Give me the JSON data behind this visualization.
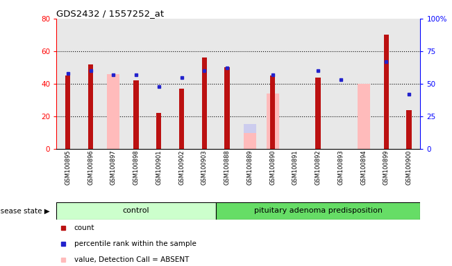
{
  "title": "GDS2432 / 1557252_at",
  "samples": [
    "GSM100895",
    "GSM100896",
    "GSM100897",
    "GSM100898",
    "GSM100901",
    "GSM100902",
    "GSM100903",
    "GSM100888",
    "GSM100889",
    "GSM100890",
    "GSM100891",
    "GSM100892",
    "GSM100893",
    "GSM100894",
    "GSM100899",
    "GSM100900"
  ],
  "count_values": [
    45,
    52,
    null,
    42,
    22,
    37,
    56,
    50,
    null,
    45,
    null,
    44,
    null,
    null,
    70,
    24
  ],
  "percentile_values": [
    58,
    60,
    57,
    57,
    48,
    55,
    60,
    62,
    null,
    57,
    null,
    60,
    53,
    null,
    67,
    42
  ],
  "absent_value_values": [
    null,
    null,
    46,
    null,
    null,
    null,
    null,
    null,
    10,
    34,
    null,
    null,
    null,
    40,
    null,
    null
  ],
  "absent_rank_values": [
    null,
    null,
    null,
    null,
    null,
    null,
    null,
    null,
    19,
    37,
    null,
    null,
    null,
    null,
    null,
    null
  ],
  "left_ylim": [
    0,
    80
  ],
  "right_ylim": [
    0,
    100
  ],
  "left_yticks": [
    0,
    20,
    40,
    60,
    80
  ],
  "right_yticks": [
    0,
    25,
    50,
    75,
    100
  ],
  "right_yticklabels": [
    "0",
    "25",
    "50",
    "75",
    "100%"
  ],
  "bar_color_count": "#bb1111",
  "bar_color_absent_value": "#ffbbbb",
  "bar_color_absent_rank": "#ccccee",
  "dot_color_percentile": "#2222cc",
  "control_count": 7,
  "disease_state_label": "disease state",
  "group_label_control": "control",
  "group_label_disease": "pituitary adenoma predisposition",
  "ctrl_band_color": "#ccffcc",
  "disease_band_color": "#66dd66",
  "plot_bg_color": "#e8e8e8"
}
